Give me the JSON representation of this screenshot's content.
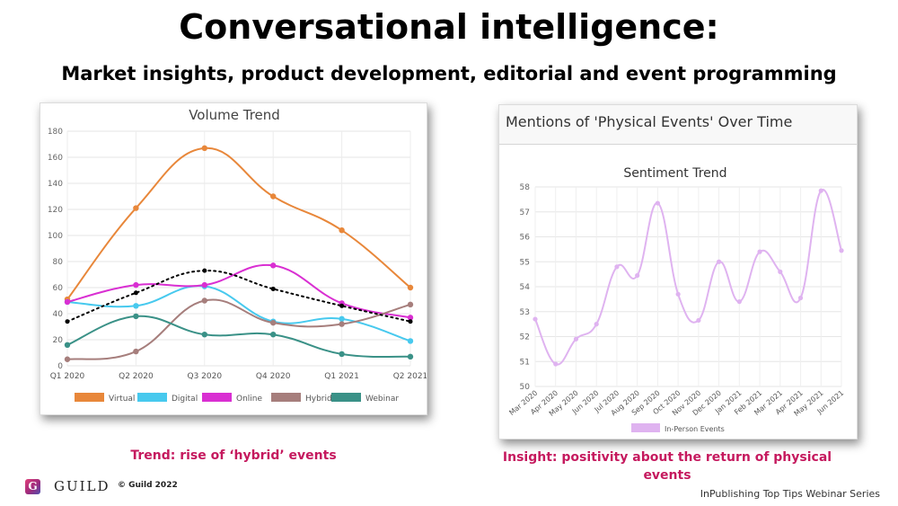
{
  "header": {
    "title": "Conversational intelligence:",
    "subtitle": "Market insights, product development, editorial and event programming"
  },
  "captions": {
    "left": "Trend: rise of ‘hybrid’ events",
    "right": "Insight: positivity about the return of physical events"
  },
  "footer": {
    "logo_letter": "G",
    "logo_text": "GUILD",
    "copyright": "© Guild  2022",
    "series": "InPublishing Top Tips Webinar Series"
  },
  "colors": {
    "virtual": "#e8873a",
    "digital": "#47c9ee",
    "online": "#d92fd2",
    "hybrid": "#a67e7c",
    "webinar": "#3a9187",
    "in_person": "#dfb3f0",
    "caption": "#c5195e"
  },
  "right_panel": {
    "header": "Mentions of 'Physical Events' Over Time"
  },
  "chart_data": [
    {
      "type": "line",
      "title": "Volume Trend",
      "categories": [
        "Q1 2020",
        "Q2 2020",
        "Q3 2020",
        "Q4 2020",
        "Q1 2021",
        "Q2 2021"
      ],
      "ylim": [
        0,
        180
      ],
      "yticks": [
        0,
        20,
        40,
        60,
        80,
        100,
        120,
        140,
        160,
        180
      ],
      "grid": true,
      "legend_position": "bottom",
      "series": [
        {
          "name": "Virtual",
          "values": [
            51,
            121,
            167,
            130,
            104,
            60
          ]
        },
        {
          "name": "Digital",
          "values": [
            49,
            46,
            61,
            34,
            36,
            19
          ]
        },
        {
          "name": "Online",
          "values": [
            49,
            62,
            62,
            77,
            48,
            37
          ]
        },
        {
          "name": "Hybrid",
          "values": [
            5,
            11,
            50,
            33,
            32,
            47
          ]
        },
        {
          "name": "Webinar",
          "values": [
            16,
            38,
            24,
            24,
            9,
            7
          ]
        }
      ],
      "trendline": {
        "style": "dotted",
        "values": [
          34,
          56,
          73,
          59,
          46,
          34
        ]
      }
    },
    {
      "type": "line",
      "title": "Sentiment Trend",
      "categories": [
        "Mar 2020",
        "Apr 2020",
        "May 2020",
        "Jun 2020",
        "Jul 2020",
        "Aug 2020",
        "Sep 2020",
        "Oct 2020",
        "Nov 2020",
        "Dec 2020",
        "Jan 2021",
        "Feb 2021",
        "Mar 2021",
        "Apr 2021",
        "May 2021",
        "Jun 2021"
      ],
      "ylim": [
        50,
        58
      ],
      "yticks": [
        50,
        51,
        52,
        53,
        54,
        55,
        56,
        57,
        58
      ],
      "grid": true,
      "legend_position": "bottom",
      "series": [
        {
          "name": "In-Person Events",
          "values": [
            52.7,
            50.9,
            51.9,
            52.5,
            54.8,
            54.45,
            57.35,
            53.7,
            52.65,
            55.0,
            53.4,
            55.4,
            54.6,
            53.55,
            57.85,
            55.45
          ]
        }
      ]
    }
  ]
}
